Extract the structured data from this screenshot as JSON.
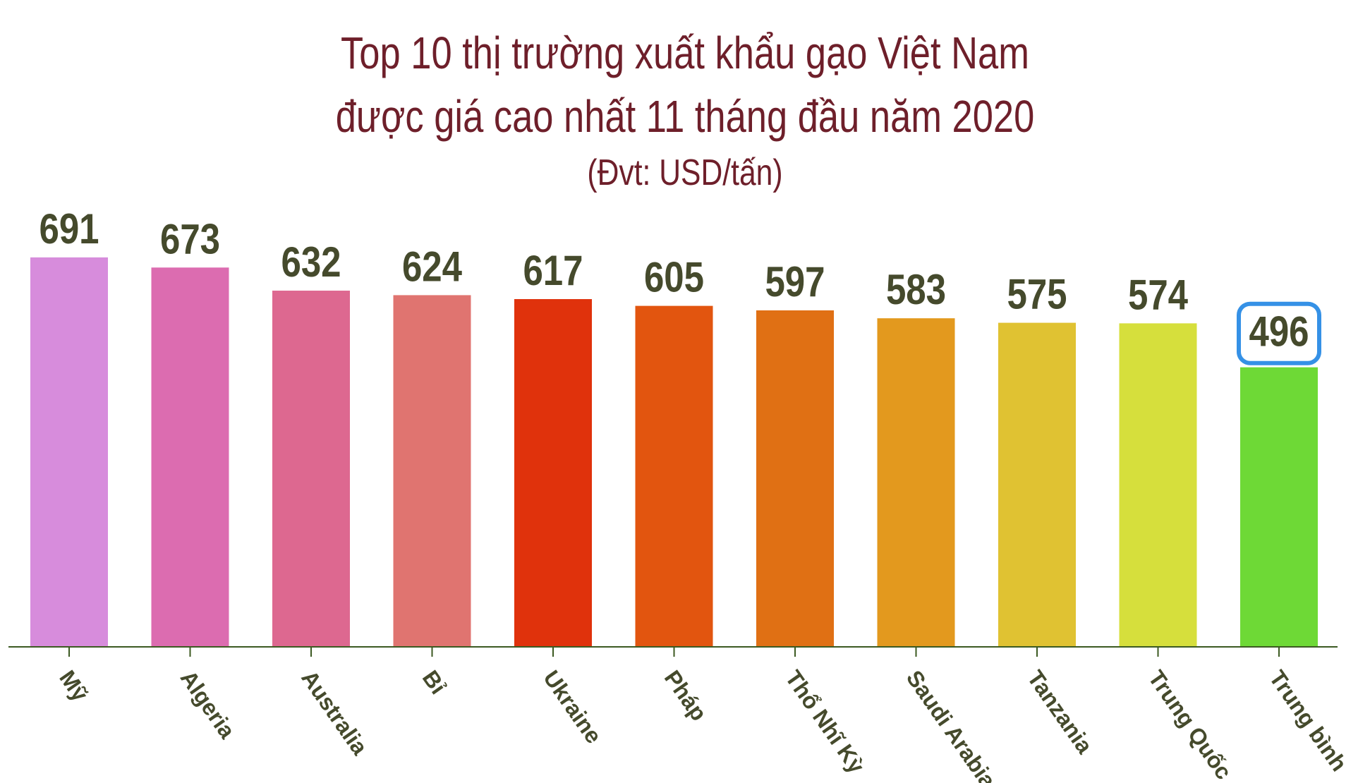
{
  "chart_data": {
    "type": "bar",
    "title": "Top 10 thị trường xuất khẩu gạo Việt Nam",
    "subtitle": "được giá cao nhất 11 tháng đầu năm 2020",
    "unit": "(Đvt: USD/tấn)",
    "categories": [
      "Mỹ",
      "Algeria",
      "Australia",
      "Bỉ",
      "Ukraine",
      "Pháp",
      "Thổ Nhĩ Kỳ",
      "Saudi Arabia",
      "Tanzania",
      "Trung Quốc",
      "Trung bình"
    ],
    "values": [
      691,
      673,
      632,
      624,
      617,
      605,
      597,
      583,
      575,
      574,
      496
    ],
    "colors": [
      "#d78cdc",
      "#dc6cb0",
      "#dd6890",
      "#e07470",
      "#e0320c",
      "#e2550f",
      "#e07014",
      "#e3991e",
      "#e0c232",
      "#d6df3c",
      "#6ed936"
    ],
    "highlight_index": 10,
    "highlight_color": "#3591e6",
    "axis_color": "#3c5a22",
    "ylim": [
      0,
      700
    ],
    "grid": false,
    "legend": "none"
  }
}
